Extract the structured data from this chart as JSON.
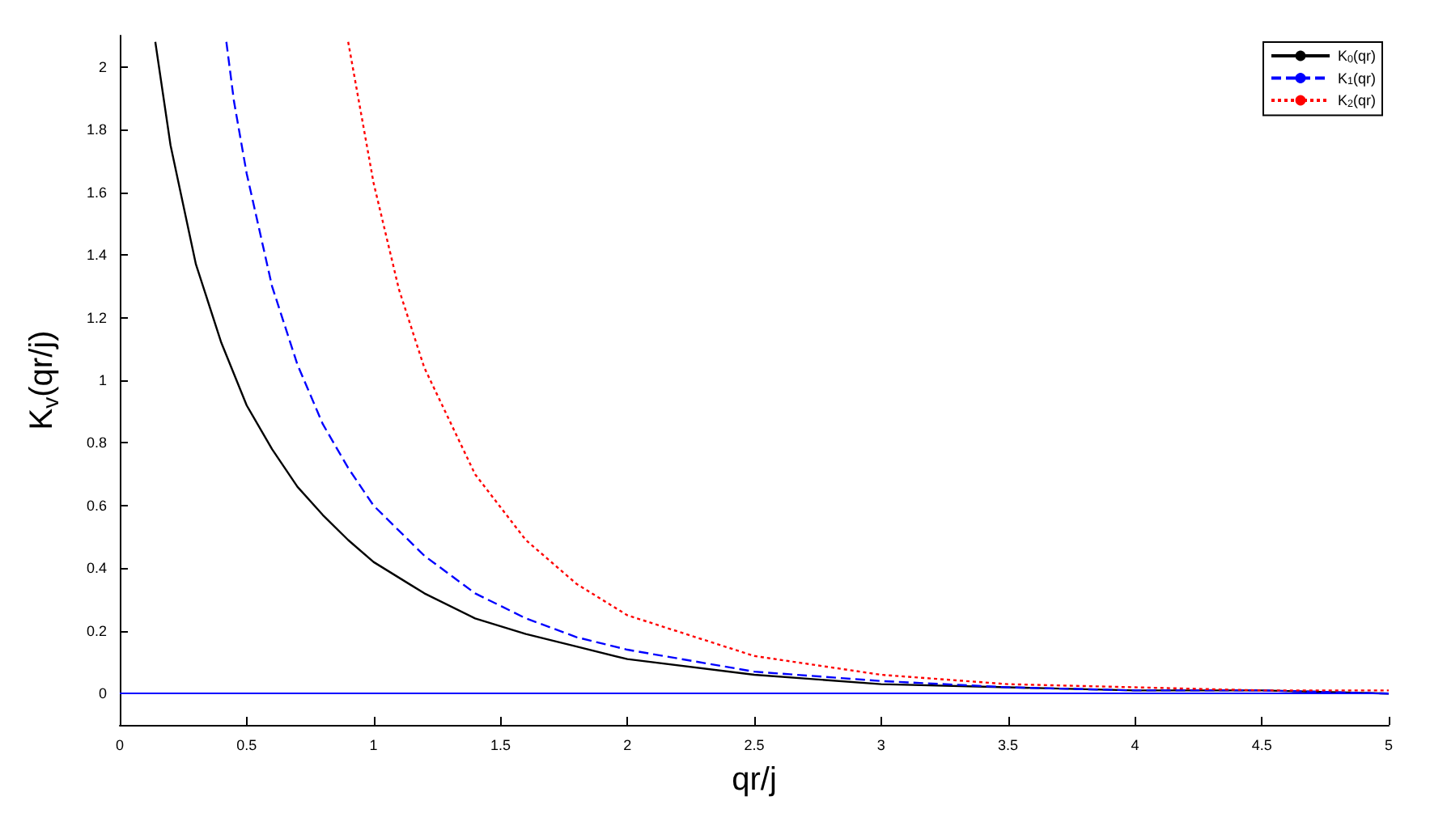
{
  "chart_data": {
    "type": "line",
    "xlabel": "qr/j",
    "ylabel": "K$_{v}$(qr/j)",
    "xlim": [
      0,
      5
    ],
    "ylim": [
      -0.1,
      2.1
    ],
    "xticks": [
      0,
      0.5,
      1,
      1.5,
      2,
      2.5,
      3,
      3.5,
      4,
      4.5,
      5
    ],
    "yticks": [
      0,
      0.2,
      0.4,
      0.6,
      0.8,
      1,
      1.2,
      1.4,
      1.6,
      1.8,
      2
    ],
    "grid": false,
    "legend": "top right",
    "marker": "none",
    "ref_lines": [
      {
        "axis": "y",
        "value": 0,
        "color": "#0000ff"
      }
    ],
    "series": [
      {
        "name": "K$_{0}$(qr)",
        "color": "#000000",
        "line_style": "solid",
        "x": [
          0.14,
          0.2,
          0.3,
          0.4,
          0.5,
          0.6,
          0.7,
          0.8,
          0.9,
          1,
          1.2,
          1.4,
          1.6,
          1.8,
          2,
          2.5,
          3,
          3.5,
          4,
          4.5,
          5
        ],
        "values": [
          2.08,
          1.75,
          1.37,
          1.12,
          0.92,
          0.78,
          0.66,
          0.57,
          0.49,
          0.42,
          0.32,
          0.24,
          0.19,
          0.15,
          0.11,
          0.06,
          0.03,
          0.02,
          0.01,
          0.01,
          0
        ]
      },
      {
        "name": "K$_{1}$(qr)",
        "color": "#0000ff",
        "line_style": "dashed",
        "x": [
          0.42,
          0.45,
          0.5,
          0.6,
          0.7,
          0.8,
          0.9,
          1,
          1.2,
          1.4,
          1.6,
          1.8,
          2,
          2.5,
          3,
          3.5,
          4,
          4.5,
          5
        ],
        "values": [
          2.08,
          1.89,
          1.66,
          1.3,
          1.05,
          0.86,
          0.72,
          0.6,
          0.44,
          0.32,
          0.24,
          0.18,
          0.14,
          0.07,
          0.04,
          0.02,
          0.01,
          0.01,
          0
        ]
      },
      {
        "name": "K$_{2}$(qr)",
        "color": "#ff0000",
        "line_style": "dotted",
        "x": [
          0.9,
          1,
          1.1,
          1.2,
          1.4,
          1.6,
          1.8,
          2,
          2.5,
          3,
          3.5,
          4,
          4.5,
          5
        ],
        "values": [
          2.08,
          1.63,
          1.29,
          1.04,
          0.7,
          0.49,
          0.35,
          0.25,
          0.12,
          0.06,
          0.03,
          0.02,
          0.01,
          0.01
        ]
      }
    ]
  }
}
